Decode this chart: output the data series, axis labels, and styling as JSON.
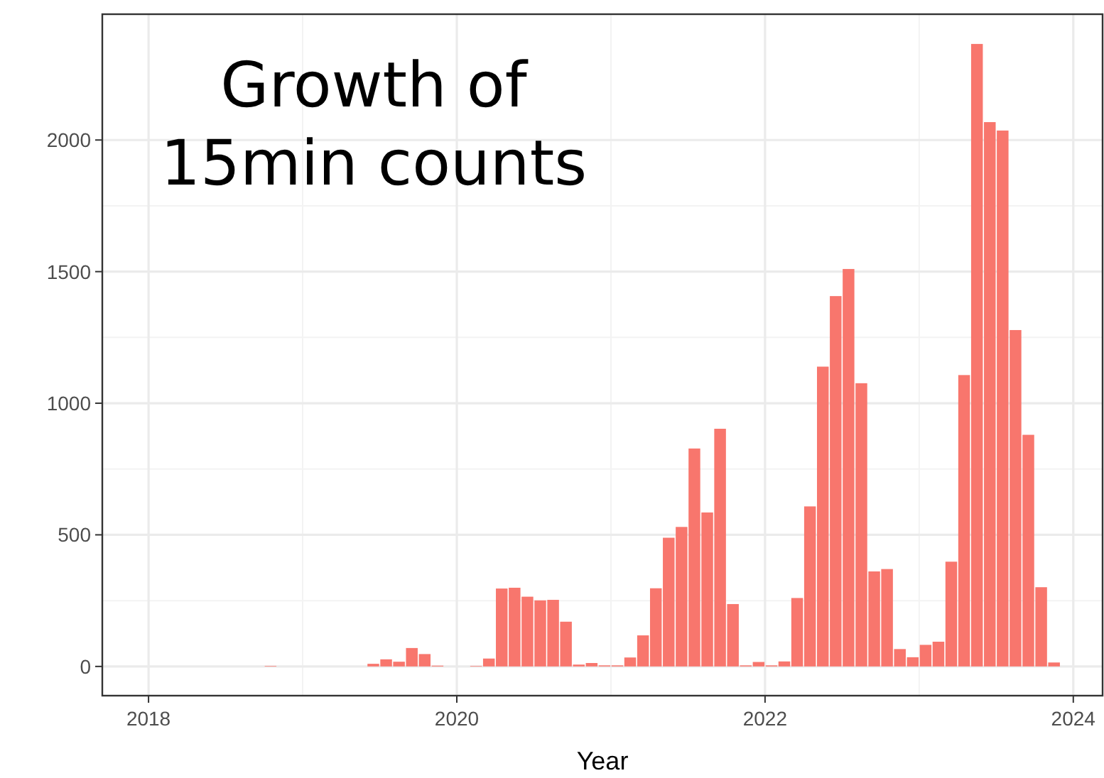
{
  "chart_data": {
    "type": "histogram",
    "title": "Growth of\n15min counts",
    "xlabel": "Year",
    "color": "#f8766d",
    "bins": [
      2018,
      2018.0833,
      2018.1667,
      2018.25,
      2018.3333,
      2018.4167,
      2018.5,
      2018.5833,
      2018.6667,
      2018.75,
      2018.8333,
      2018.9167,
      2019,
      2019.0833,
      2019.1667,
      2019.25,
      2019.3333,
      2019.4167,
      2019.5,
      2019.5833,
      2019.6667,
      2019.75,
      2019.8333,
      2019.9167,
      2020,
      2020.0833,
      2020.1667,
      2020.25,
      2020.3333,
      2020.4167,
      2020.5,
      2020.5833,
      2020.6667,
      2020.75,
      2020.8333,
      2020.9167,
      2021,
      2021.0833,
      2021.1667,
      2021.25,
      2021.3333,
      2021.4167,
      2021.5,
      2021.5833,
      2021.6667,
      2021.75,
      2021.8333,
      2021.9167,
      2022,
      2022.0833,
      2022.1667,
      2022.25,
      2022.3333,
      2022.4167,
      2022.5,
      2022.5833,
      2022.6667,
      2022.75,
      2022.8333,
      2022.9167,
      2023,
      2023.0833,
      2023.1667,
      2023.25,
      2023.3333,
      2023.4167,
      2023.5,
      2023.5833,
      2023.6667,
      2023.75,
      2023.8333,
      2023.9167,
      2024
    ],
    "values": [
      0,
      0,
      0,
      0,
      0,
      0,
      0,
      0,
      0,
      2,
      0,
      0,
      0,
      0,
      0,
      0,
      0,
      10,
      27,
      18,
      70,
      47,
      3,
      0,
      0,
      2,
      30,
      296,
      299,
      265,
      251,
      253,
      170,
      7,
      13,
      4,
      4,
      34,
      118,
      297,
      489,
      530,
      828,
      585,
      903,
      237,
      4,
      17,
      4,
      19,
      260,
      608,
      1139,
      1407,
      1510,
      1076,
      361,
      370,
      66,
      35,
      82,
      94,
      398,
      1107,
      2365,
      2068,
      2036,
      1278,
      880,
      301,
      15,
      0
    ],
    "xlim": [
      2017.7,
      2024.19
    ],
    "xticks": [
      2018,
      2020,
      2022,
      2024
    ],
    "ylim": [
      -111,
      2478
    ],
    "yticks": [
      0,
      500,
      1000,
      1500,
      2000
    ],
    "grid": true
  }
}
